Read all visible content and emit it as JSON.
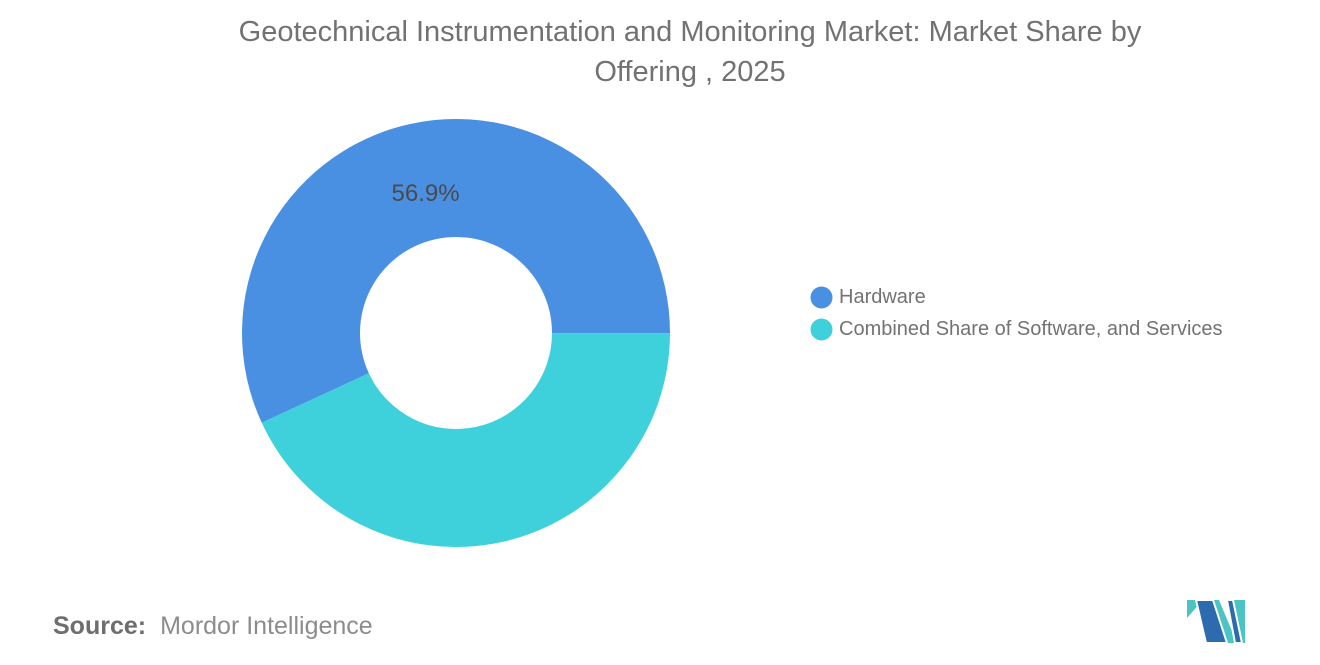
{
  "title": {
    "line1": "Geotechnical Instrumentation and Monitoring Market: Market Share by",
    "line2": "Offering , 2025"
  },
  "chart_data": {
    "type": "pie",
    "donut": true,
    "title": "Geotechnical Instrumentation and Monitoring Market: Market Share by Offering , 2025",
    "series": [
      {
        "name": "Hardware",
        "value": 56.9,
        "color": "#4A90E2",
        "label": "56.9%"
      },
      {
        "name": "Combined Share of Software, and Services",
        "value": 43.1,
        "color": "#3ED1DC",
        "label": ""
      }
    ],
    "start_angle_deg": 155.2,
    "inner_radius_ratio": 0.45,
    "legend_position": "right",
    "data_label_color": "#4a4a4a",
    "background": "#ffffff"
  },
  "legend": {
    "items": [
      {
        "label": "Hardware",
        "color": "#4A90E2"
      },
      {
        "label": "Combined Share of Software, and Services",
        "color": "#3ED1DC"
      }
    ]
  },
  "source": {
    "prefix": "Source:",
    "text": "Mordor Intelligence"
  },
  "logo": {
    "name": "mordor-intelligence-logo",
    "teal": "#4CC4C4",
    "blue": "#2C6BAE"
  }
}
